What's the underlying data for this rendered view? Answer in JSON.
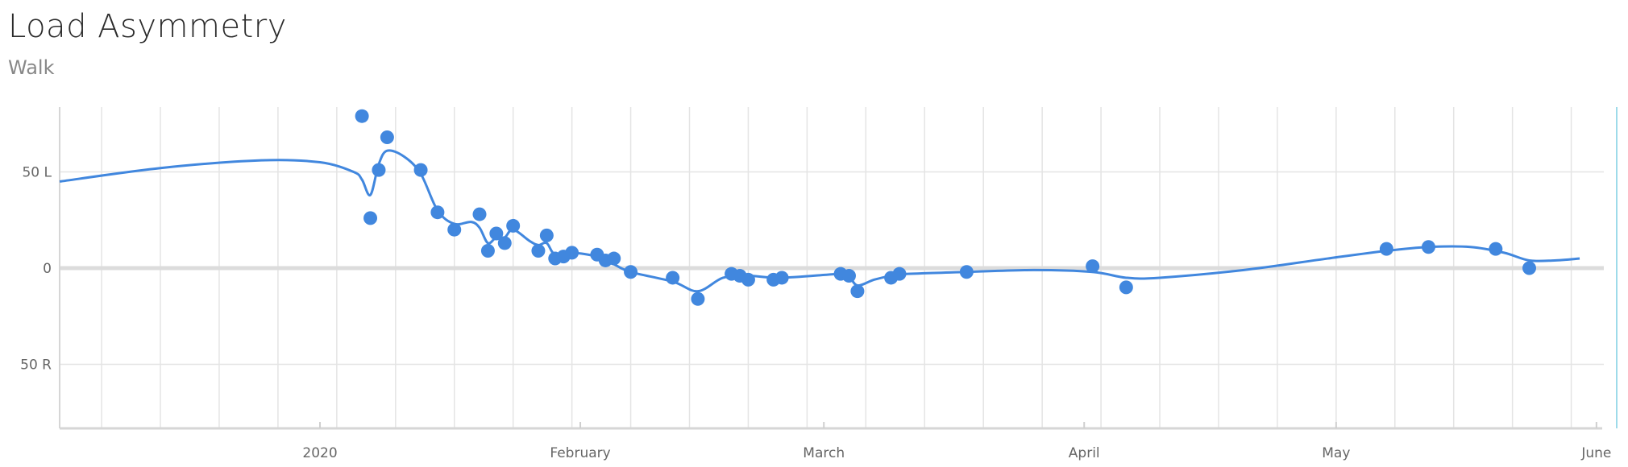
{
  "title": "Load Asymmetry",
  "subtitle": "Walk",
  "colors": {
    "series": "#4187de",
    "grid": "#e4e4e4",
    "zero_line": "#dcdcdc",
    "cursor": "#7ecfe3"
  },
  "chart_data": {
    "type": "scatter",
    "title": "Load Asymmetry",
    "subtitle": "Walk",
    "xlabel": "",
    "ylabel": "",
    "x_tick_labels": [
      "2020",
      "February",
      "March",
      "April",
      "May",
      "June"
    ],
    "y_tick_labels": [
      "50 L",
      "0",
      "50 R"
    ],
    "y_tick_values": [
      50,
      0,
      -50
    ],
    "ylim": [
      -83,
      83
    ],
    "grid": true,
    "weekly_gridlines": true,
    "legend": "none",
    "x_unit": "days since 2020-01-01",
    "xlim": [
      -31,
      153
    ],
    "series": [
      {
        "type": "scatter",
        "points": [
          {
            "x": 5,
            "y": 79
          },
          {
            "x": 6,
            "y": 26
          },
          {
            "x": 7,
            "y": 51
          },
          {
            "x": 8,
            "y": 68
          },
          {
            "x": 12,
            "y": 51
          },
          {
            "x": 14,
            "y": 29
          },
          {
            "x": 16,
            "y": 20
          },
          {
            "x": 19,
            "y": 28
          },
          {
            "x": 20,
            "y": 9
          },
          {
            "x": 21,
            "y": 18
          },
          {
            "x": 22,
            "y": 13
          },
          {
            "x": 23,
            "y": 22
          },
          {
            "x": 26,
            "y": 9
          },
          {
            "x": 27,
            "y": 17
          },
          {
            "x": 28,
            "y": 5
          },
          {
            "x": 29,
            "y": 6
          },
          {
            "x": 30,
            "y": 8
          },
          {
            "x": 33,
            "y": 7
          },
          {
            "x": 34,
            "y": 4
          },
          {
            "x": 35,
            "y": 5
          },
          {
            "x": 37,
            "y": -2
          },
          {
            "x": 42,
            "y": -5
          },
          {
            "x": 45,
            "y": -16
          },
          {
            "x": 49,
            "y": -3
          },
          {
            "x": 50,
            "y": -4
          },
          {
            "x": 51,
            "y": -6
          },
          {
            "x": 54,
            "y": -6
          },
          {
            "x": 55,
            "y": -5
          },
          {
            "x": 62,
            "y": -3
          },
          {
            "x": 63,
            "y": -4
          },
          {
            "x": 64,
            "y": -12
          },
          {
            "x": 68,
            "y": -5
          },
          {
            "x": 69,
            "y": -3
          },
          {
            "x": 77,
            "y": -2
          },
          {
            "x": 92,
            "y": 1
          },
          {
            "x": 96,
            "y": -10
          },
          {
            "x": 127,
            "y": 10
          },
          {
            "x": 132,
            "y": 11
          },
          {
            "x": 140,
            "y": 10
          },
          {
            "x": 144,
            "y": 0
          }
        ]
      },
      {
        "type": "line",
        "smoothed": true,
        "points": [
          {
            "x": -31,
            "y": 45
          },
          {
            "x": -19,
            "y": 52
          },
          {
            "x": -7,
            "y": 56
          },
          {
            "x": 0,
            "y": 55
          },
          {
            "x": 4,
            "y": 50
          },
          {
            "x": 5,
            "y": 46
          },
          {
            "x": 6,
            "y": 38
          },
          {
            "x": 7,
            "y": 54
          },
          {
            "x": 8,
            "y": 61
          },
          {
            "x": 10,
            "y": 58
          },
          {
            "x": 12,
            "y": 49
          },
          {
            "x": 14,
            "y": 30
          },
          {
            "x": 16,
            "y": 23
          },
          {
            "x": 18,
            "y": 24
          },
          {
            "x": 19,
            "y": 21
          },
          {
            "x": 20,
            "y": 13
          },
          {
            "x": 21,
            "y": 16
          },
          {
            "x": 22,
            "y": 16
          },
          {
            "x": 23,
            "y": 20
          },
          {
            "x": 25,
            "y": 14
          },
          {
            "x": 26,
            "y": 12
          },
          {
            "x": 27,
            "y": 13
          },
          {
            "x": 28,
            "y": 7
          },
          {
            "x": 30,
            "y": 8
          },
          {
            "x": 33,
            "y": 6
          },
          {
            "x": 35,
            "y": 2
          },
          {
            "x": 37,
            "y": -2
          },
          {
            "x": 42,
            "y": -7
          },
          {
            "x": 45,
            "y": -12
          },
          {
            "x": 48,
            "y": -5
          },
          {
            "x": 51,
            "y": -4
          },
          {
            "x": 55,
            "y": -5
          },
          {
            "x": 62,
            "y": -3
          },
          {
            "x": 63,
            "y": -4
          },
          {
            "x": 64,
            "y": -9
          },
          {
            "x": 66,
            "y": -6
          },
          {
            "x": 68,
            "y": -4
          },
          {
            "x": 70,
            "y": -3
          },
          {
            "x": 77,
            "y": -2
          },
          {
            "x": 85,
            "y": -1
          },
          {
            "x": 92,
            "y": -2
          },
          {
            "x": 96,
            "y": -5
          },
          {
            "x": 100,
            "y": -5
          },
          {
            "x": 110,
            "y": -1
          },
          {
            "x": 120,
            "y": 5
          },
          {
            "x": 127,
            "y": 9
          },
          {
            "x": 132,
            "y": 11
          },
          {
            "x": 137,
            "y": 11
          },
          {
            "x": 141,
            "y": 8
          },
          {
            "x": 144,
            "y": 4
          },
          {
            "x": 147,
            "y": 4
          },
          {
            "x": 150,
            "y": 5
          }
        ]
      }
    ],
    "month_ticks": [
      {
        "label": "2020",
        "x": 0
      },
      {
        "label": "February",
        "x": 31
      },
      {
        "label": "March",
        "x": 60
      },
      {
        "label": "April",
        "x": 91
      },
      {
        "label": "May",
        "x": 121
      },
      {
        "label": "June",
        "x": 152
      }
    ]
  }
}
